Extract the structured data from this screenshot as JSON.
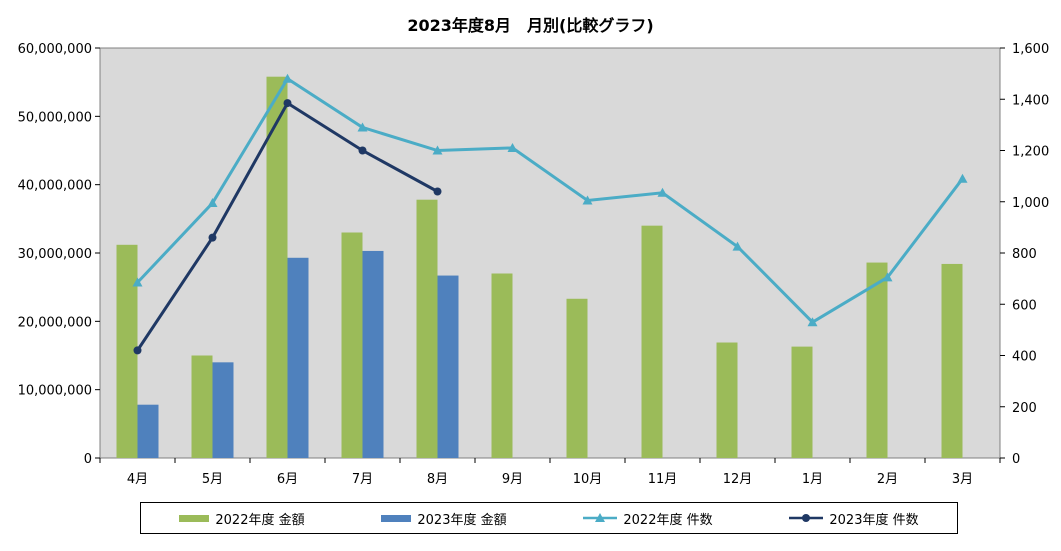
{
  "chart_data": {
    "type": "bar",
    "title": "2023年度8月　月別(比較グラフ)",
    "categories": [
      "4月",
      "5月",
      "6月",
      "7月",
      "8月",
      "9月",
      "10月",
      "11月",
      "12月",
      "1月",
      "2月",
      "3月"
    ],
    "y_left": {
      "ylim": [
        0,
        60000000
      ],
      "ticks": [
        "0",
        "10,000,000",
        "20,000,000",
        "30,000,000",
        "40,000,000",
        "50,000,000",
        "60,000,000"
      ]
    },
    "y_right": {
      "ylim": [
        0,
        1600
      ],
      "ticks": [
        "0",
        "200",
        "400",
        "600",
        "800",
        "1,000",
        "1,200",
        "1,400",
        "1,600"
      ]
    },
    "bar_series": [
      {
        "name": "2022年度 金額",
        "color": "#9bbb59",
        "values": [
          31200000,
          15000000,
          55800000,
          33000000,
          37800000,
          27000000,
          23300000,
          34000000,
          16900000,
          16300000,
          28600000,
          28400000
        ]
      },
      {
        "name": "2023年度 金額",
        "color": "#4f81bd",
        "values": [
          7800000,
          14000000,
          29300000,
          30300000,
          26700000,
          null,
          null,
          null,
          null,
          null,
          null,
          null
        ]
      }
    ],
    "line_series": [
      {
        "name": "2022年度 件数",
        "color": "#4bacc6",
        "marker": "triangle",
        "values": [
          685,
          995,
          1480,
          1290,
          1200,
          1210,
          1005,
          1035,
          825,
          530,
          705,
          1090
        ]
      },
      {
        "name": "2023年度 件数",
        "color": "#1f3864",
        "marker": "circle",
        "values": [
          420,
          860,
          1385,
          1200,
          1040,
          null,
          null,
          null,
          null,
          null,
          null,
          null
        ]
      }
    ],
    "grid": false,
    "legend": "bottom"
  }
}
